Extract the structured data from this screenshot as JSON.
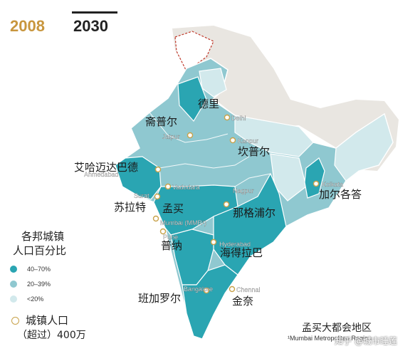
{
  "tabs": [
    {
      "label": "2008",
      "selected": false
    },
    {
      "label": "2030",
      "selected": true
    }
  ],
  "colors": {
    "high": "#2aa5b2",
    "medium": "#8fc8d0",
    "low": "#d2e9ec",
    "neighbor": "#e9e6e1",
    "city_ring": "#c8a24a",
    "tab_2008": "#c8963e"
  },
  "map": {
    "cities": [
      {
        "id": "delhi",
        "en": "Delhi",
        "zh": "德里"
      },
      {
        "id": "jaipur",
        "en": "Jaipur",
        "zh": "斋普尔"
      },
      {
        "id": "kanpur",
        "en": "Kanpur",
        "zh": "坎普尔"
      },
      {
        "id": "ahmedabad",
        "en": "Ahmedabad",
        "zh": "艾哈迈达巴德"
      },
      {
        "id": "vadodara",
        "en": "Vadodara",
        "zh": ""
      },
      {
        "id": "surat",
        "en": "Surat",
        "zh": "苏拉特"
      },
      {
        "id": "mumbai",
        "en": "Mumbai (MMR¹)",
        "zh": "孟买"
      },
      {
        "id": "pune",
        "en": "Pune",
        "zh": "普纳"
      },
      {
        "id": "nagpur",
        "en": "Nagpur",
        "zh": "那格浦尔"
      },
      {
        "id": "hyderabad",
        "en": "Hyderabad",
        "zh": "海得拉巴"
      },
      {
        "id": "bangalore",
        "en": "Bangalore",
        "zh": "班加罗尔"
      },
      {
        "id": "chennai",
        "en": "Chennai",
        "zh": "金奈"
      },
      {
        "id": "kolkata",
        "en": "Kolkata",
        "zh": "加尔各答"
      }
    ]
  },
  "legend": {
    "title_line1": "各邦城镇",
    "title_line2": "人口百分比",
    "items": [
      {
        "label": "40–70%",
        "level": "high"
      },
      {
        "label": "20–39%",
        "level": "medium"
      },
      {
        "label": "<20%",
        "level": "low"
      }
    ],
    "city_title": "城镇人口",
    "city_sub": "（超过）400万"
  },
  "footnote": {
    "zh": "孟买大都会地区",
    "en": "¹Mumbai Metropolitan Region"
  },
  "watermark": "知乎 @城市睡莲"
}
